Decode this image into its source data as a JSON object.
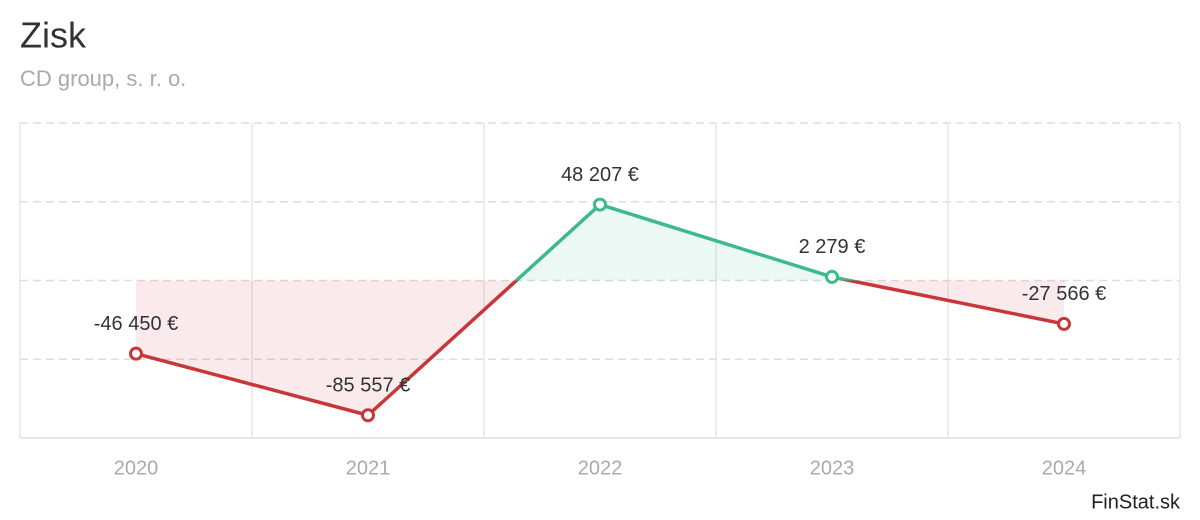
{
  "chart_data": {
    "type": "line",
    "title": "Zisk",
    "subtitle": "CD group, s. r. o.",
    "credit": "FinStat.sk",
    "categories": [
      "2020",
      "2021",
      "2022",
      "2023",
      "2024"
    ],
    "values": [
      -46450,
      -85557,
      48207,
      2279,
      -27566
    ],
    "value_labels": [
      "-46 450 €",
      "-85 557 €",
      "48 207 €",
      "2 279 €",
      "-27 566 €"
    ],
    "color_positive": "#3dba8a",
    "color_negative": "#c8363a",
    "ylim": [
      -100000,
      100000
    ],
    "yticks": [
      -100000,
      -50000,
      0,
      50000,
      100000
    ],
    "grid": true
  }
}
